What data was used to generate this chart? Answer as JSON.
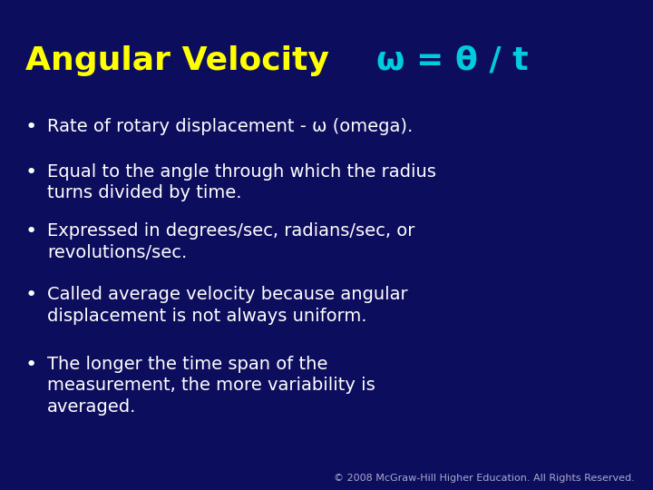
{
  "bg_color": "#0d0d5e",
  "title_text": "Angular Velocity",
  "title_color": "#ffff00",
  "formula_text": "ω = θ / t",
  "formula_color": "#00ccdd",
  "bullet_color": "#ffffff",
  "bullet_points": [
    "Rate of rotary displacement - ω (omega).",
    "Equal to the angle through which the radius\nturns divided by time.",
    "Expressed in degrees/sec, radians/sec, or\nrevolutions/sec.",
    "Called average velocity because angular\ndisplacement is not always uniform.",
    "The longer the time span of the\nmeasurement, the more variability is\naveraged."
  ],
  "footer_text": "© 2008 McGraw-Hill Higher Education. All Rights Reserved.",
  "footer_color": "#aaaacc",
  "title_fontsize": 26,
  "formula_fontsize": 26,
  "bullet_fontsize": 14,
  "footer_fontsize": 8
}
